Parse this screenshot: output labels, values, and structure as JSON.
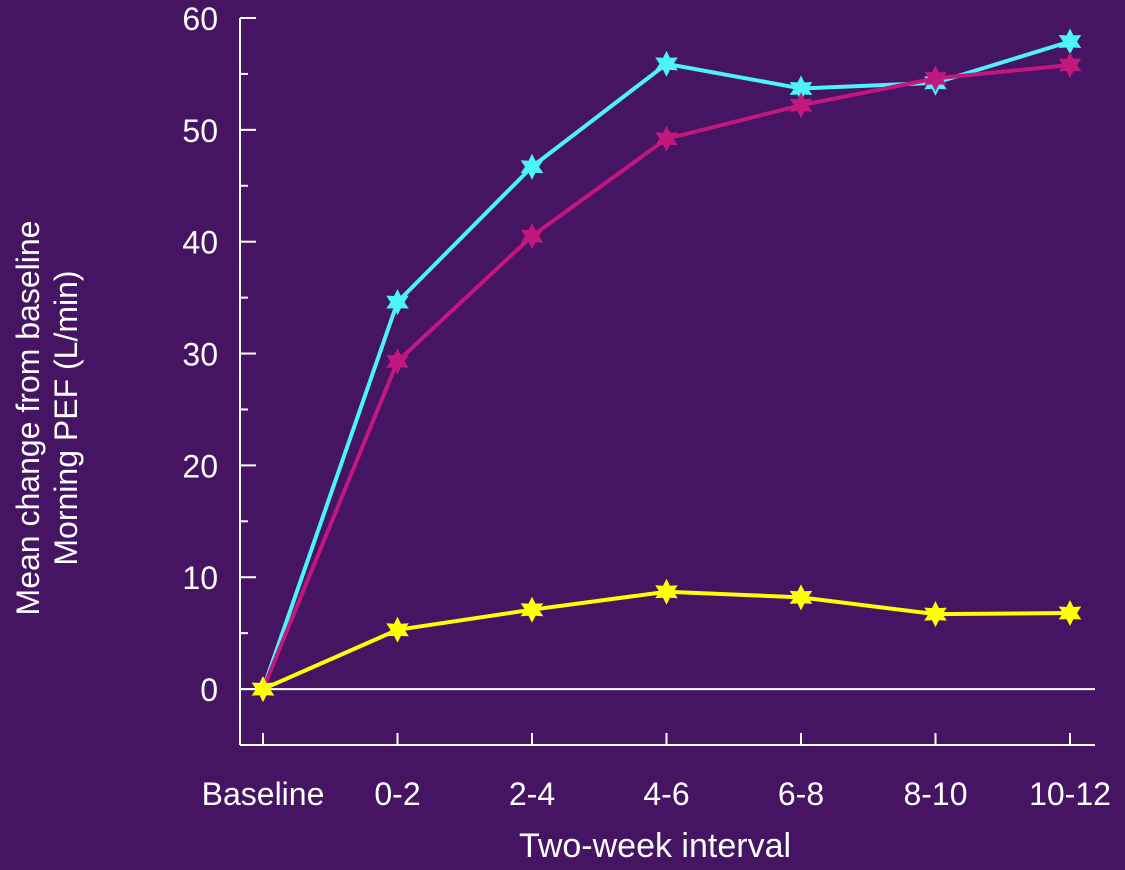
{
  "colors": {
    "background": "#451462",
    "axis": "#ffffff",
    "text": "#ffffff"
  },
  "chart_data": {
    "type": "line",
    "title": "",
    "xlabel": "Two-week interval",
    "ylabel_lines": [
      "Mean change from baseline",
      "Morning PEF (L/min)"
    ],
    "categories": [
      "Baseline",
      "0-2",
      "2-4",
      "4-6",
      "6-8",
      "8-10",
      "10-12"
    ],
    "ylim": [
      -5,
      60
    ],
    "yticks": [
      0,
      10,
      20,
      30,
      40,
      50,
      60
    ],
    "zero_line": true,
    "grid": false,
    "legend": "none",
    "marker": "star",
    "series": [
      {
        "color": "#4cf3f7",
        "values": [
          0,
          34.6,
          46.7,
          55.9,
          53.7,
          54.2,
          57.9
        ]
      },
      {
        "color": "#c2177f",
        "values": [
          0,
          29.3,
          40.5,
          49.2,
          52.2,
          54.6,
          55.8
        ]
      },
      {
        "color": "#ffff00",
        "values": [
          0,
          5.3,
          7.1,
          8.7,
          8.2,
          6.7,
          6.8
        ]
      }
    ]
  }
}
